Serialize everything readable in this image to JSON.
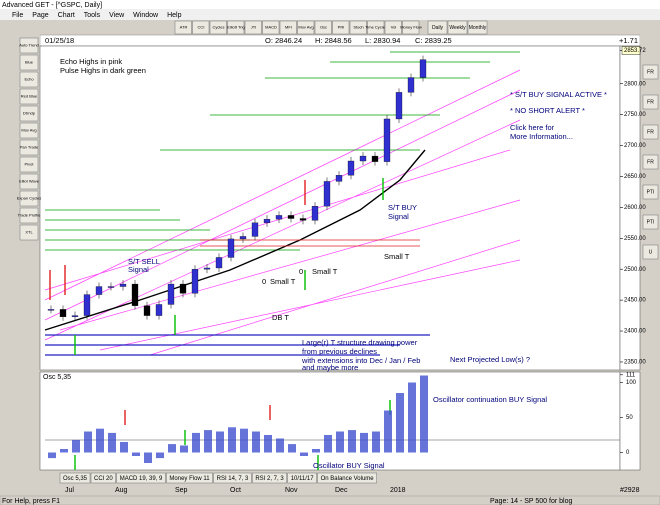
{
  "window": {
    "title": "Advanced GET - [^GSPC, Daily]",
    "menu": [
      "File",
      "Page",
      "Chart",
      "Tools",
      "View",
      "Window",
      "Help"
    ],
    "toolbar": [
      "ATR",
      "CCI",
      "Cycles",
      "Elliott Trig",
      "JTI",
      "MACD",
      "MFI",
      "Mov Avg",
      "Osc",
      "PRI",
      "Stoch",
      "Time Cycles",
      "Vol",
      "Money Flow"
    ],
    "timeframes": [
      "Daily",
      "Weekly",
      "Monthly"
    ],
    "left_tools": [
      "Auto Trend",
      "Blue",
      "Echo",
      "Red Blue",
      "Dtrndp",
      "Mov Avg",
      "Pan Trade",
      "Pivot",
      "Elliot Wave",
      "Expan Cycles",
      "Trade Profile",
      "XTL"
    ],
    "right_tools": [
      "FR",
      "FR",
      "FR",
      "FR",
      "PTI",
      "PTI",
      "U"
    ]
  },
  "info_bar": {
    "date": "01/25/18",
    "open": "O: 2846.24",
    "high": "H: 2848.56",
    "low": "L: 2830.94",
    "close": "C: 2839.25",
    "change": "+1.71"
  },
  "price_panel": {
    "ylim": [
      2337,
      2861
    ],
    "yticks": [
      2853.72,
      {
        "value": 2800,
        "label": "2800.00"
      },
      {
        "value": 2750,
        "label": "2750.00"
      },
      {
        "value": 2700,
        "label": "2700.00"
      },
      {
        "value": 2650,
        "label": "2650.00"
      },
      {
        "value": 2600,
        "label": "2600.00"
      },
      {
        "value": 2550,
        "label": "2550.00"
      },
      {
        "value": 2500,
        "label": "2500.00"
      },
      {
        "value": 2450,
        "label": "2450.00"
      },
      {
        "value": 2400,
        "label": "2400.00"
      },
      {
        "value": 2350,
        "label": "2350.00"
      }
    ],
    "closes": [
      2435,
      2423,
      2425,
      2459,
      2472,
      2472,
      2476,
      2441,
      2425,
      2443,
      2476,
      2461,
      2500,
      2502,
      2519,
      2549,
      2553,
      2575,
      2581,
      2587,
      2582,
      2579,
      2602,
      2642,
      2652,
      2675,
      2683,
      2674,
      2743,
      2786,
      2810,
      2839
    ],
    "annotations": [
      "Echo Highs in pink",
      "Pulse Highs in dark green",
      "* S/T BUY SIGNAL ACTIVE *",
      "* NO SHORT ALERT *",
      "Click here for",
      "More Information...",
      "S/T BUY",
      "Signal",
      "S/T SELL",
      "Signal",
      "Small T",
      "Small T",
      "Small T",
      "0",
      "0",
      "DB T",
      "Large(r) T structure drawing power",
      "from previous declines",
      "with extensions into Dec / Jan / Feb",
      "and maybe more",
      "Next Projected Low(s) ?"
    ]
  },
  "osc_panel": {
    "label": "Osc 5,35",
    "ylim": [
      -25,
      115
    ],
    "yticks": [
      111,
      100,
      50,
      0
    ],
    "values": [
      -8,
      5,
      18,
      30,
      34,
      28,
      15,
      -5,
      -15,
      -8,
      12,
      10,
      28,
      32,
      30,
      36,
      34,
      30,
      25,
      20,
      12,
      -5,
      5,
      25,
      30,
      32,
      28,
      30,
      60,
      85,
      100,
      110
    ],
    "annotations": [
      "Oscillator continuation BUY Signal",
      "Oscillator BUY Signal"
    ]
  },
  "tabs": [
    "Osc 5,35",
    "CCI 20",
    "MACD 19, 39, 9",
    "Money Flow 11",
    "RSI 14, 7, 3",
    "RSI 2, 7, 3",
    "10/11/17",
    "On Balance Volume"
  ],
  "months": [
    "Jul",
    "Aug",
    "Sep",
    "Oct",
    "Nov",
    "Dec",
    "2018"
  ],
  "status": {
    "help": "For Help, press F1",
    "page": "Page: 14 - SP 500 for blog",
    "id": "#2928"
  }
}
